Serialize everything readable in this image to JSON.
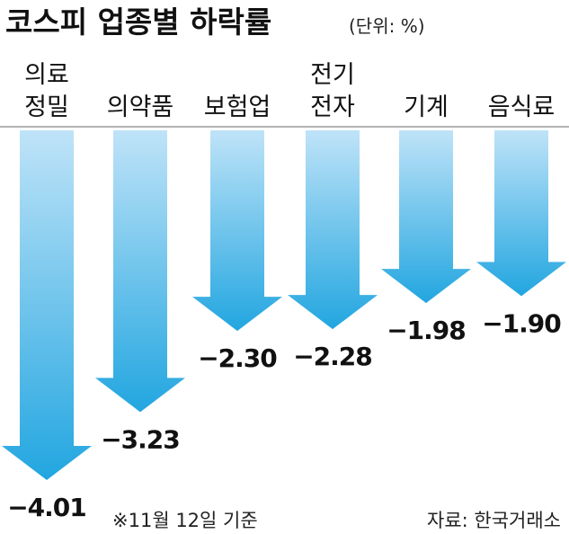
{
  "title": "코스피 업종별 하락률",
  "unit": "(단위: %)",
  "note": "※11월 12일 기준",
  "source": "자료: 한국거래소",
  "colors": {
    "arrow_top": "#bfe3f8",
    "arrow_bottom": "#22a6e0",
    "baseline": "#9a9a9a"
  },
  "chart_data": {
    "type": "bar",
    "categories": [
      [
        "의료",
        "정밀"
      ],
      [
        "의약품"
      ],
      [
        "보험업"
      ],
      [
        "전기",
        "전자"
      ],
      [
        "기계"
      ],
      [
        "음식료"
      ]
    ],
    "values": [
      -4.01,
      -3.23,
      -2.3,
      -2.28,
      -1.98,
      -1.9
    ],
    "value_labels": [
      "−4.01",
      "−3.23",
      "−2.30",
      "−2.28",
      "−1.98",
      "−1.90"
    ],
    "title": "코스피 업종별 하락률",
    "xlabel": "",
    "ylabel": "",
    "ylim": [
      -4.01,
      0
    ]
  }
}
